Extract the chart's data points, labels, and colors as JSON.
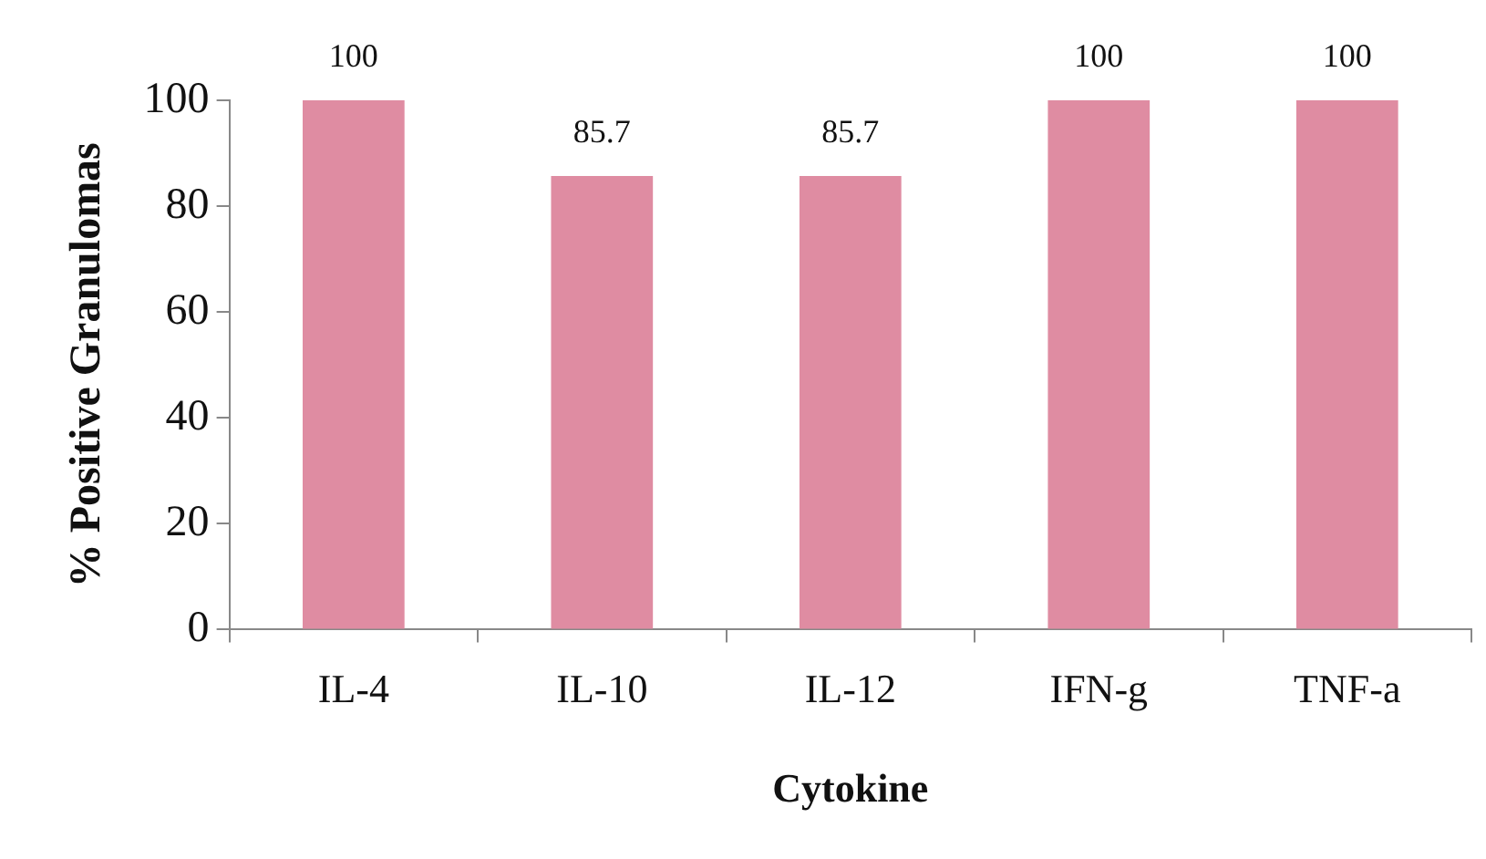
{
  "chart_data": {
    "type": "bar",
    "xlabel": "Cytokine",
    "ylabel": "% Positive Granulomas",
    "categories": [
      "IL-4",
      "IL-10",
      "IL-12",
      "IFN-g",
      "TNF-a"
    ],
    "values": [
      100,
      85.7,
      85.7,
      100,
      100
    ],
    "color": "#df8ca2",
    "ylim": [
      0,
      100
    ],
    "yticks": [
      0,
      20,
      40,
      60,
      80,
      100
    ],
    "grid": false,
    "legend": false,
    "data_labels": true
  }
}
